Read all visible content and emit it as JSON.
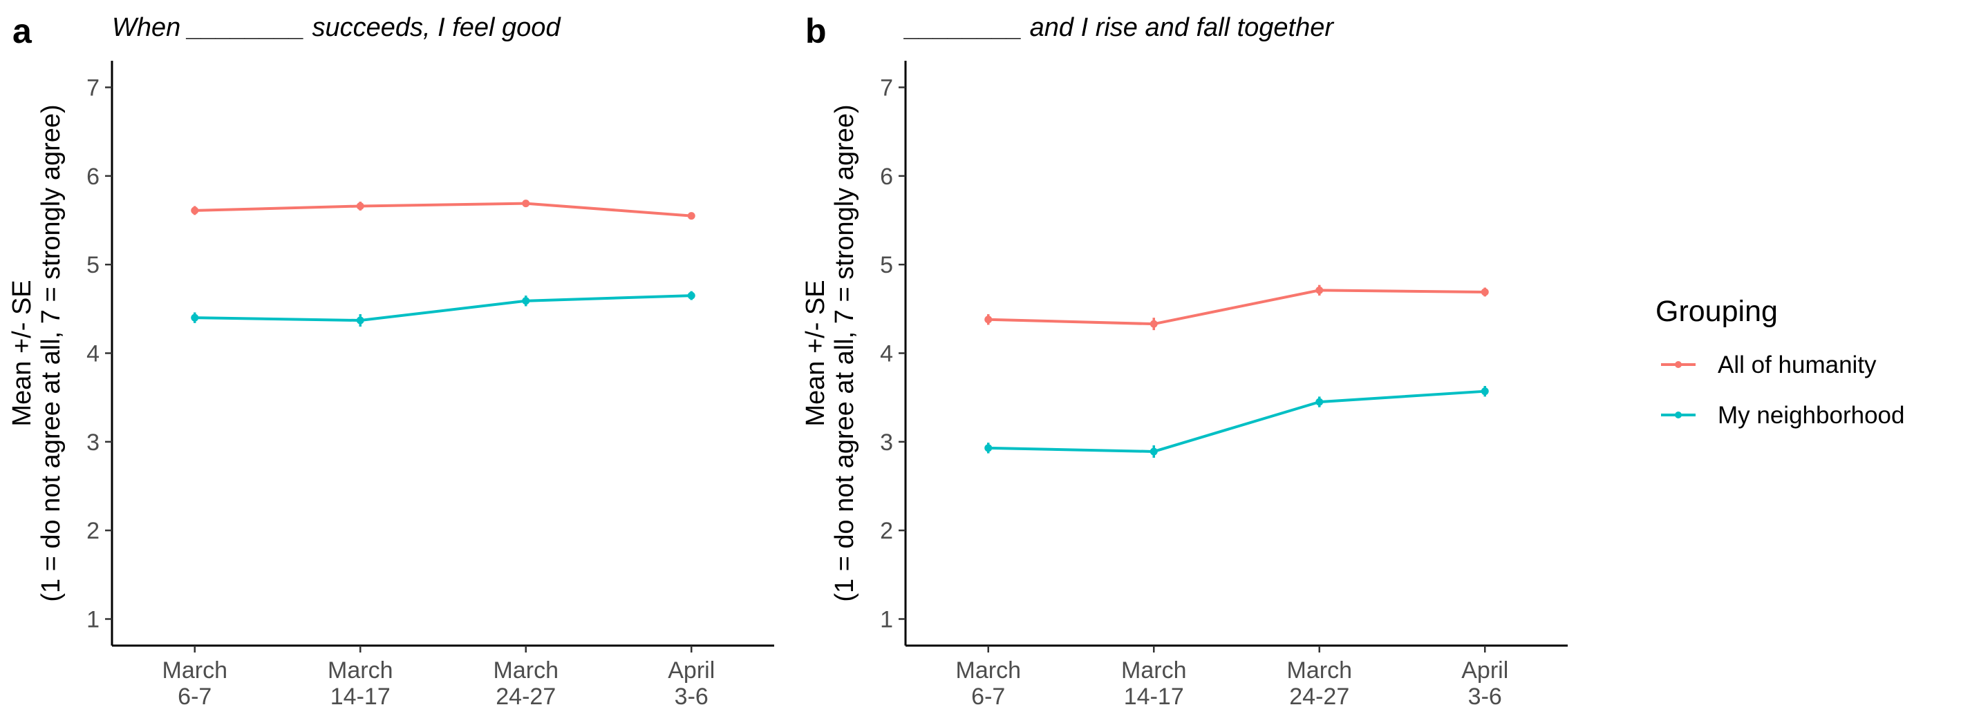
{
  "chart_data": [
    {
      "type": "line",
      "panel_label": "a",
      "title": "When ________ succeeds, I feel good",
      "xlabel": "",
      "ylabel": [
        "Mean +/- SE",
        "(1 = do not agree at all, 7 = strongly agree)"
      ],
      "ylim": [
        0.7,
        7.3
      ],
      "yticks": [
        1,
        2,
        3,
        4,
        5,
        6,
        7
      ],
      "categories": [
        [
          "March",
          "6-7"
        ],
        [
          "March",
          "14-17"
        ],
        [
          "March",
          "24-27"
        ],
        [
          "April",
          "3-6"
        ]
      ],
      "grid": false,
      "series": [
        {
          "name": "All of humanity",
          "values": [
            5.61,
            5.66,
            5.69,
            5.55
          ],
          "se": [
            0.05,
            0.05,
            0.04,
            0.04
          ]
        },
        {
          "name": "My neighborhood",
          "values": [
            4.4,
            4.37,
            4.59,
            4.65
          ],
          "se": [
            0.06,
            0.07,
            0.06,
            0.05
          ]
        }
      ]
    },
    {
      "type": "line",
      "panel_label": "b",
      "title": "________ and I rise and fall together",
      "xlabel": "",
      "ylabel": [
        "Mean +/- SE",
        "(1 = do not agree at all, 7 = strongly agree)"
      ],
      "ylim": [
        0.7,
        7.3
      ],
      "yticks": [
        1,
        2,
        3,
        4,
        5,
        6,
        7
      ],
      "categories": [
        [
          "March",
          "6-7"
        ],
        [
          "March",
          "14-17"
        ],
        [
          "March",
          "24-27"
        ],
        [
          "April",
          "3-6"
        ]
      ],
      "grid": false,
      "series": [
        {
          "name": "All of humanity",
          "values": [
            4.38,
            4.33,
            4.71,
            4.69
          ],
          "se": [
            0.06,
            0.07,
            0.06,
            0.05
          ]
        },
        {
          "name": "My neighborhood",
          "values": [
            2.93,
            2.89,
            3.45,
            3.57
          ],
          "se": [
            0.06,
            0.07,
            0.06,
            0.06
          ]
        }
      ]
    }
  ],
  "legend": {
    "title": "Grouping",
    "position": "right",
    "items": [
      {
        "label": "All of humanity",
        "color": "#F8766D"
      },
      {
        "label": "My neighborhood",
        "color": "#00BFC4"
      }
    ]
  },
  "colors": {
    "All of humanity": "#F8766D",
    "My neighborhood": "#00BFC4"
  }
}
